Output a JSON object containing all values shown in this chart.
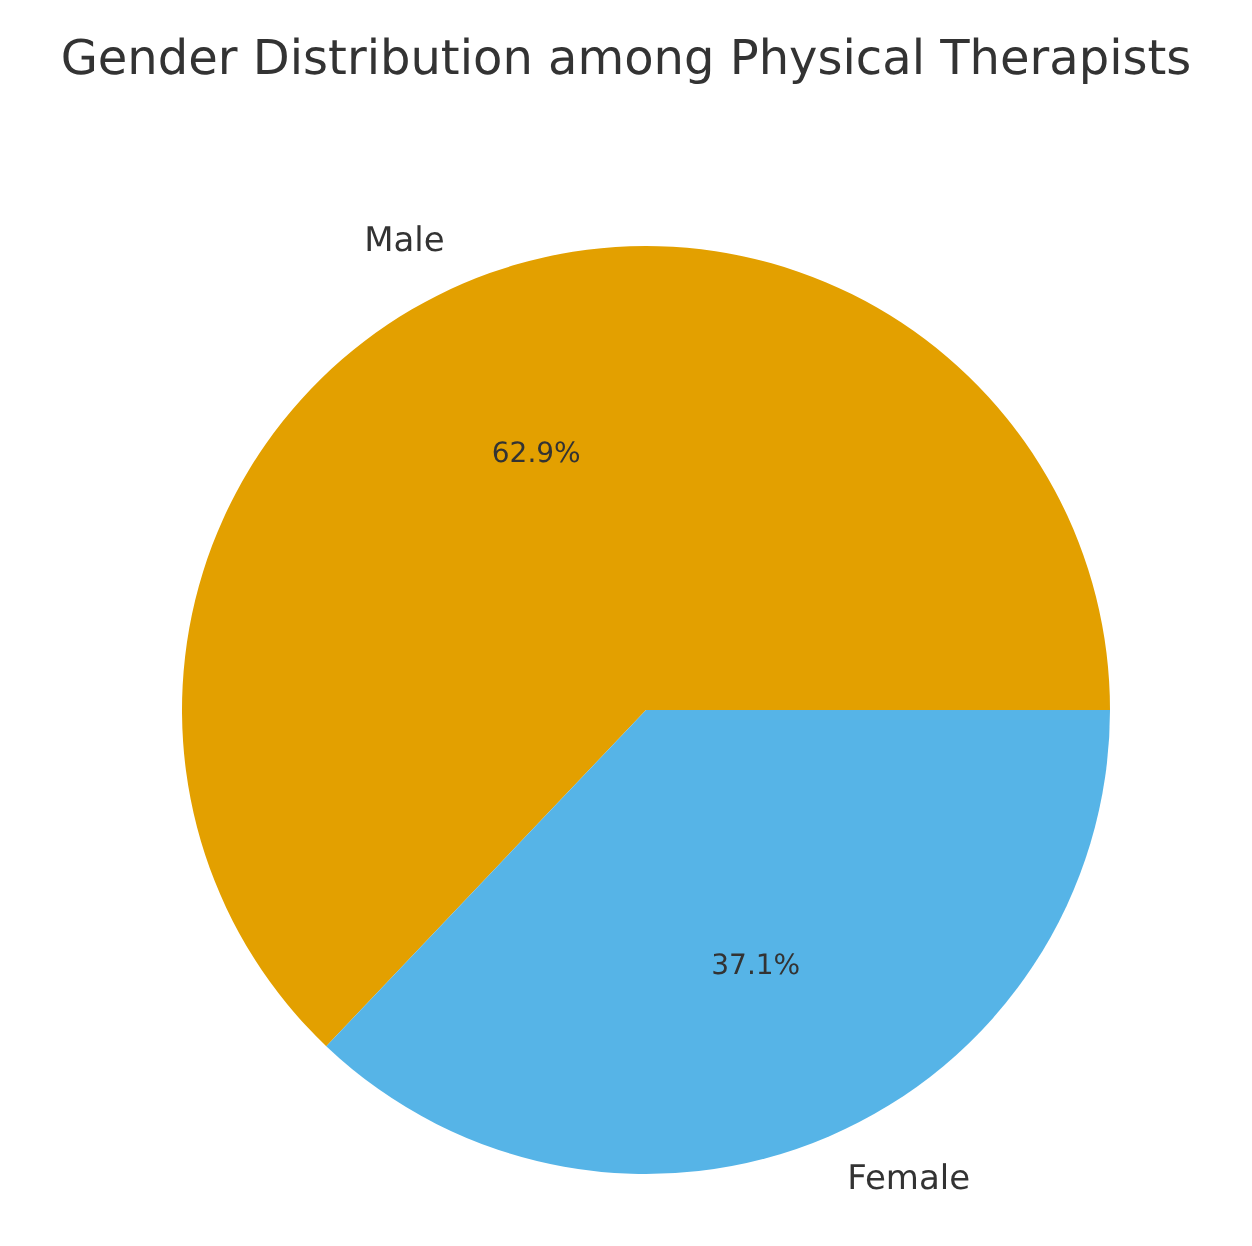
{
  "chart_data": {
    "type": "pie",
    "title": "Gender Distribution among Physical Therapists",
    "categories": [
      "Male",
      "Female"
    ],
    "values": [
      62.9,
      37.1
    ],
    "value_labels": [
      "62.9%",
      "37.1%"
    ],
    "colors": [
      "#e3a000",
      "#56b4e7"
    ]
  }
}
